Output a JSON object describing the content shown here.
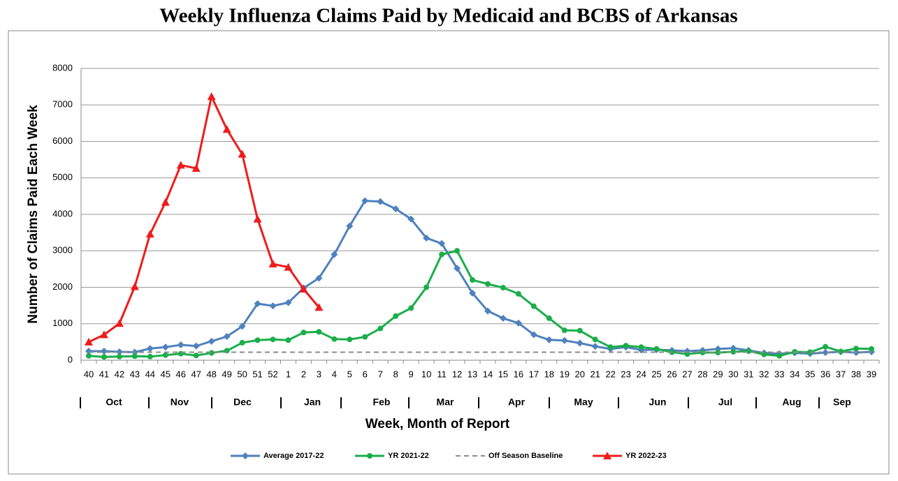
{
  "chart_data": {
    "type": "line",
    "title": "Weekly Influenza Claims Paid by Medicaid and BCBS of Arkansas",
    "y_label": "Number of Claims Paid Each Week",
    "x_label": "Week, Month of Report",
    "categories": [
      "40",
      "41",
      "42",
      "43",
      "44",
      "45",
      "46",
      "47",
      "48",
      "49",
      "50",
      "51",
      "52",
      "1",
      "2",
      "3",
      "4",
      "5",
      "6",
      "7",
      "8",
      "9",
      "10",
      "11",
      "12",
      "13",
      "14",
      "15",
      "16",
      "17",
      "18",
      "19",
      "20",
      "21",
      "22",
      "23",
      "24",
      "25",
      "26",
      "27",
      "28",
      "29",
      "30",
      "31",
      "32",
      "33",
      "34",
      "35",
      "36",
      "37",
      "38",
      "39"
    ],
    "months": [
      "Oct",
      "Nov",
      "Dec",
      "Jan",
      "Feb",
      "Mar",
      "Apr",
      "May",
      "Jun",
      "Jul",
      "Aug",
      "Sep"
    ],
    "ylim": [
      0,
      8000
    ],
    "yticks": [
      0,
      1000,
      2000,
      3000,
      4000,
      5000,
      6000,
      7000,
      8000
    ],
    "grid": true,
    "legend": "bottom",
    "series": [
      {
        "name": "Average 2017-22",
        "color": "#4f81bd",
        "marker": "diamond",
        "values": [
          250,
          250,
          230,
          220,
          320,
          360,
          420,
          390,
          520,
          650,
          930,
          1550,
          1490,
          1580,
          1980,
          2250,
          2900,
          3680,
          4370,
          4350,
          4150,
          3870,
          3350,
          3200,
          2520,
          1840,
          1350,
          1150,
          1020,
          700,
          560,
          540,
          470,
          380,
          310,
          360,
          280,
          290,
          270,
          250,
          270,
          310,
          330,
          270,
          200,
          180,
          200,
          180,
          210,
          230,
          210,
          230
        ]
      },
      {
        "name": "YR 2021-22",
        "color": "#1aae4a",
        "marker": "circle",
        "values": [
          120,
          90,
          100,
          110,
          100,
          140,
          180,
          130,
          200,
          260,
          480,
          550,
          570,
          550,
          760,
          780,
          580,
          570,
          640,
          870,
          1210,
          1430,
          2000,
          2900,
          3000,
          2200,
          2090,
          1990,
          1820,
          1480,
          1150,
          820,
          810,
          570,
          360,
          400,
          360,
          310,
          220,
          170,
          210,
          210,
          230,
          250,
          160,
          120,
          230,
          220,
          370,
          240,
          320,
          310
        ]
      },
      {
        "name": "Off Season Baseline",
        "color": "#8c8c8c",
        "marker": "none",
        "dashed": true,
        "values": [
          220,
          220,
          220,
          220,
          220,
          220,
          220,
          220,
          220,
          220,
          220,
          220,
          220,
          220,
          220,
          220,
          220,
          220,
          220,
          220,
          220,
          220,
          220,
          220,
          220,
          220,
          220,
          220,
          220,
          220,
          220,
          220,
          220,
          220,
          220,
          220,
          220,
          220,
          220,
          220,
          220,
          220,
          220,
          220,
          220,
          220,
          220,
          220,
          220,
          220,
          220,
          220
        ]
      },
      {
        "name": "YR 2022-23",
        "color": "#ee1c1c",
        "marker": "triangle",
        "values": [
          500,
          700,
          1010,
          2020,
          3460,
          4330,
          5350,
          5260,
          7230,
          6330,
          5650,
          3870,
          2640,
          2550,
          1950,
          1450,
          null,
          null,
          null,
          null,
          null,
          null,
          null,
          null,
          null,
          null,
          null,
          null,
          null,
          null,
          null,
          null,
          null,
          null,
          null,
          null,
          null,
          null,
          null,
          null,
          null,
          null,
          null,
          null,
          null,
          null,
          null,
          null,
          null,
          null,
          null,
          null
        ]
      }
    ]
  }
}
